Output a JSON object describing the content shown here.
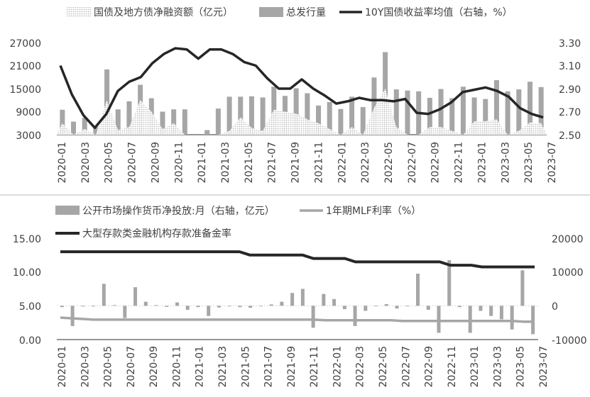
{
  "chart_data": [
    {
      "type": "bar",
      "title": "",
      "legend": [
        {
          "name": "国债及地方债净融资额（亿元）",
          "style": "dotted-bar"
        },
        {
          "name": "总发行量",
          "style": "bar"
        },
        {
          "name": "10Y国债收益率均值（右轴，%）",
          "style": "line"
        }
      ],
      "x_tick_labels": [
        "2020-01",
        "2020-03",
        "2020-05",
        "2020-07",
        "2020-09",
        "2020-11",
        "2021-01",
        "2021-03",
        "2021-05",
        "2021-07",
        "2021-09",
        "2021-11",
        "2022-01",
        "2022-03",
        "2022-05",
        "2022-07",
        "2022-09",
        "2022-11",
        "2023-01",
        "2023-03",
        "2023-05",
        "2023-07"
      ],
      "y_left": {
        "ticks": [
          "27000",
          "21000",
          "15000",
          "9000",
          "3000"
        ],
        "range": [
          3000,
          27000
        ]
      },
      "y_right": {
        "ticks": [
          "3.30",
          "3.10",
          "2.90",
          "2.70",
          "2.50"
        ],
        "range": [
          2.5,
          3.3
        ]
      },
      "grid": false,
      "legend_position": "top",
      "series": [
        {
          "name": "总发行量",
          "values": [
            9500,
            6400,
            7400,
            5000,
            20000,
            9600,
            11700,
            16000,
            12500,
            9000,
            9600,
            9600,
            0,
            4200,
            9800,
            12900,
            12900,
            13000,
            12700,
            15500,
            13100,
            15100,
            13800,
            10600,
            11500,
            9700,
            12900,
            10200,
            17900,
            24500,
            14800,
            14500,
            14300,
            12600,
            14900,
            12500,
            15500,
            12700,
            12300,
            17200,
            14300,
            14800,
            16800,
            15400
          ]
        },
        {
          "name": "国债及地方债净融资额（亿元）",
          "values": [
            6000,
            3000,
            4500,
            3000,
            12000,
            4200,
            5000,
            12000,
            9000,
            4500,
            6000,
            3000,
            0,
            0,
            0,
            4000,
            7500,
            4800,
            4000,
            9500,
            9000,
            8500,
            7000,
            6000,
            4500,
            0,
            5000,
            0,
            10000,
            15000,
            5000,
            0,
            3000,
            5000,
            5000,
            4000,
            0,
            6500,
            6500,
            7000,
            0,
            4000,
            6200,
            6000
          ]
        },
        {
          "name": "10Y国债收益率均值（右轴，%）",
          "axis": "right",
          "values": [
            3.1,
            2.85,
            2.67,
            2.56,
            2.68,
            2.88,
            2.96,
            3.0,
            3.12,
            3.2,
            3.25,
            3.24,
            3.16,
            3.24,
            3.24,
            3.2,
            3.13,
            3.1,
            2.99,
            2.9,
            2.9,
            2.98,
            2.9,
            2.84,
            2.77,
            2.79,
            2.82,
            2.8,
            2.8,
            2.79,
            2.81,
            2.69,
            2.68,
            2.72,
            2.78,
            2.87,
            2.89,
            2.91,
            2.88,
            2.83,
            2.73,
            2.68,
            2.65
          ]
        }
      ]
    },
    {
      "type": "bar",
      "title": "",
      "legend": [
        {
          "name": "公开市场操作货币净投放:月（右轴，亿元）",
          "style": "bar"
        },
        {
          "name": "1年期MLF利率（%）",
          "style": "line-gray"
        },
        {
          "name": "大型存款类金融机构存款准备金率",
          "style": "line-dark"
        }
      ],
      "x_tick_labels": [
        "2020-01",
        "2020-03",
        "2020-05",
        "2020-07",
        "2020-09",
        "2020-11",
        "2021-01",
        "2021-03",
        "2021-05",
        "2021-07",
        "2021-09",
        "2021-11",
        "2022-01",
        "2022-03",
        "2022-05",
        "2022-07",
        "2022-09",
        "2022-11",
        "2023-01",
        "2023-03",
        "2023-05",
        "2023-07"
      ],
      "y_left": {
        "ticks": [
          "15.00",
          "10.00",
          "5.00",
          "0.00"
        ],
        "range": [
          0,
          15
        ]
      },
      "y_right": {
        "ticks": [
          "20000",
          "10000",
          "0",
          "-10000"
        ],
        "range": [
          -10000,
          20000
        ]
      },
      "grid": false,
      "legend_position": "top",
      "series": [
        {
          "name": "公开市场操作货币净投放:月（右轴，亿元）",
          "axis": "right",
          "values": [
            -400,
            -6000,
            -200,
            -200,
            6500,
            200,
            -3600,
            5500,
            1200,
            200,
            -300,
            1000,
            -1200,
            -400,
            -3000,
            -500,
            0,
            -400,
            -600,
            0,
            400,
            1200,
            3800,
            5000,
            -6500,
            3500,
            2000,
            -1000,
            -6000,
            -1500,
            0,
            500,
            -800,
            0,
            9500,
            -1200,
            -8000,
            13500,
            -400,
            -8000,
            -1500,
            -3000,
            -4000,
            -7000,
            10500,
            -8400
          ]
        },
        {
          "name": "1年期MLF利率（%）",
          "values": [
            3.25,
            3.15,
            3.05,
            2.95,
            2.95,
            2.95,
            2.95,
            2.95,
            2.95,
            2.95,
            2.95,
            2.95,
            2.95,
            2.95,
            2.95,
            2.95,
            2.95,
            2.95,
            2.95,
            2.95,
            2.95,
            2.95,
            2.95,
            2.95,
            2.85,
            2.85,
            2.85,
            2.85,
            2.85,
            2.85,
            2.85,
            2.75,
            2.75,
            2.75,
            2.75,
            2.75,
            2.75,
            2.75,
            2.75,
            2.75,
            2.75,
            2.75,
            2.65,
            2.65
          ]
        },
        {
          "name": "大型存款类金融机构存款准备金率",
          "values": [
            13.0,
            13.0,
            13.0,
            13.0,
            13.0,
            13.0,
            13.0,
            13.0,
            13.0,
            13.0,
            13.0,
            13.0,
            13.0,
            13.0,
            13.0,
            13.0,
            13.0,
            13.0,
            12.5,
            12.5,
            12.5,
            12.5,
            12.5,
            12.5,
            12.0,
            12.0,
            12.0,
            12.0,
            11.5,
            11.5,
            11.5,
            11.5,
            11.5,
            11.5,
            11.5,
            11.5,
            11.5,
            11.0,
            11.0,
            11.0,
            10.75,
            10.75,
            10.75,
            10.75,
            10.75,
            10.75
          ]
        }
      ]
    }
  ],
  "colors": {
    "bar_gray": "#a6a6a6",
    "bar_dotted": "#c9c9c9",
    "line_dark": "#262626",
    "line_gray": "#a6a6a6",
    "axis": "#595959",
    "separator": "#d0d0d0"
  }
}
